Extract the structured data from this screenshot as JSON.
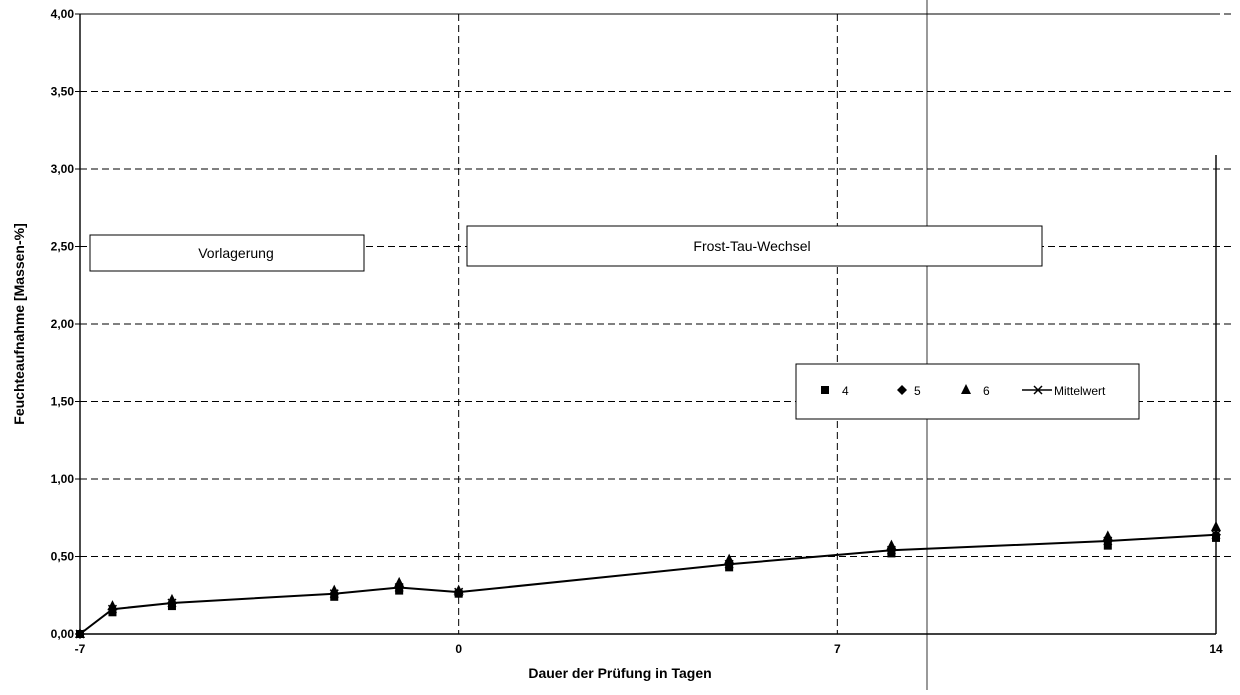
{
  "chart_data": {
    "type": "line",
    "title": "",
    "xlabel": "Dauer der Prüfung in Tagen",
    "ylabel": "Feuchteaufnahme [Massen-%]",
    "xlim": [
      -7,
      14
    ],
    "ylim": [
      0,
      4
    ],
    "x_ticks": [
      -7,
      0,
      7,
      14
    ],
    "x_tick_labels": [
      "-7",
      "0",
      "7",
      "14"
    ],
    "y_ticks": [
      0,
      0.5,
      1,
      1.5,
      2,
      2.5,
      3,
      3.5,
      4
    ],
    "y_tick_labels": [
      "0,00",
      "0,50",
      "1,00",
      "1,50",
      "2,00",
      "2,50",
      "3,00",
      "3,50",
      "4,00"
    ],
    "grid": true,
    "legend_position": "right-center",
    "series": [
      {
        "name": "4",
        "marker": "square",
        "line": false,
        "x": [
          -7,
          -6.4,
          -5.3,
          -2.3,
          -1.1,
          0,
          5,
          8,
          12,
          14
        ],
        "y": [
          0.0,
          0.14,
          0.18,
          0.24,
          0.28,
          0.26,
          0.43,
          0.52,
          0.57,
          0.62
        ]
      },
      {
        "name": "5",
        "marker": "diamond",
        "line": false,
        "x": [
          -7,
          -6.4,
          -5.3,
          -2.3,
          -1.1,
          0,
          5,
          8,
          12,
          14
        ],
        "y": [
          0.0,
          0.16,
          0.2,
          0.26,
          0.3,
          0.27,
          0.45,
          0.54,
          0.6,
          0.64
        ]
      },
      {
        "name": "6",
        "marker": "triangle",
        "line": false,
        "x": [
          -7,
          -6.4,
          -5.3,
          -2.3,
          -1.1,
          0,
          5,
          8,
          12,
          14
        ],
        "y": [
          0.0,
          0.18,
          0.22,
          0.28,
          0.33,
          0.28,
          0.48,
          0.57,
          0.63,
          0.69
        ]
      },
      {
        "name": "Mittelwert",
        "marker": "x",
        "line": true,
        "x": [
          -7,
          -6.4,
          -5.3,
          -2.3,
          -1.1,
          0,
          5,
          8,
          12,
          14
        ],
        "y": [
          0.0,
          0.16,
          0.2,
          0.26,
          0.3,
          0.27,
          0.45,
          0.54,
          0.6,
          0.64
        ]
      }
    ],
    "annotations": [
      {
        "text": "Vorlagerung"
      },
      {
        "text": "Frost-Tau-Wechsel"
      }
    ]
  }
}
